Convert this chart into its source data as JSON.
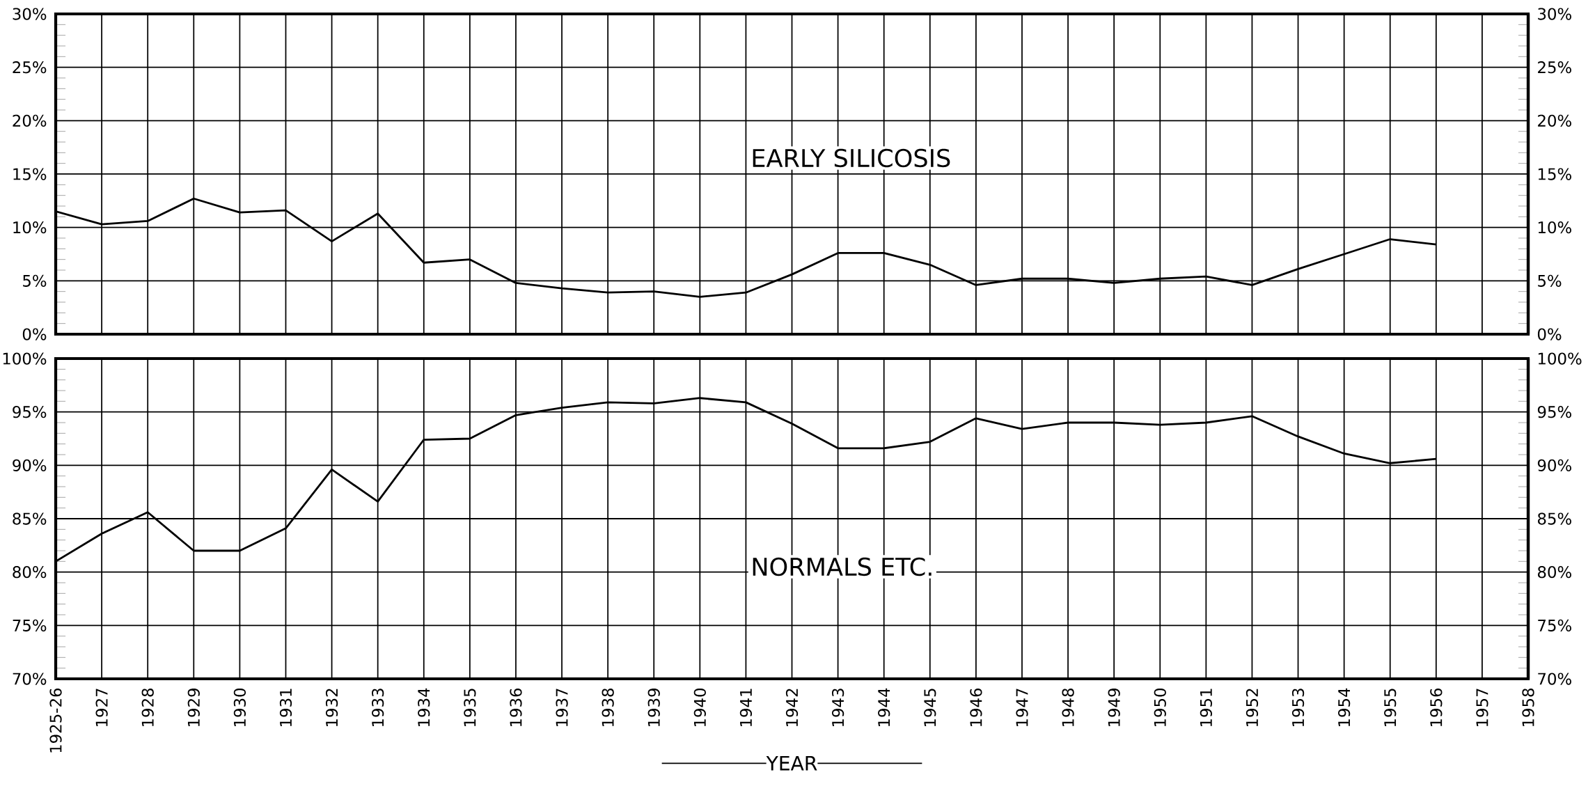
{
  "chart_data": [
    {
      "type": "line",
      "categories": [
        "1925-26",
        "1927",
        "1928",
        "1929",
        "1930",
        "1931",
        "1932",
        "1933",
        "1934",
        "1935",
        "1936",
        "1937",
        "1938",
        "1939",
        "1940",
        "1941",
        "1942",
        "1943",
        "1944",
        "1945",
        "1946",
        "1947",
        "1948",
        "1949",
        "1950",
        "1951",
        "1952",
        "1953",
        "1954",
        "1955",
        "1956",
        "1957",
        "1958"
      ],
      "series": [
        {
          "color": "#000000",
          "values": [
            11.5,
            10.3,
            10.6,
            12.7,
            11.4,
            11.6,
            8.7,
            11.3,
            6.7,
            7.0,
            4.8,
            4.3,
            3.9,
            4.0,
            3.5,
            3.9,
            5.6,
            7.6,
            7.6,
            6.5,
            4.6,
            5.2,
            5.2,
            4.8,
            5.2,
            5.4,
            4.6,
            6.1,
            7.5,
            8.9,
            8.4,
            null,
            null
          ]
        }
      ],
      "ylim": [
        0,
        30
      ],
      "yticks": [
        {
          "value": 0,
          "label": "0%"
        },
        {
          "value": 5,
          "label": "5%"
        },
        {
          "value": 10,
          "label": "10%"
        },
        {
          "value": 15,
          "label": "15%"
        },
        {
          "value": 20,
          "label": "20%"
        },
        {
          "value": 25,
          "label": "25%"
        },
        {
          "value": 30,
          "label": "30%"
        }
      ],
      "y2lim": [
        0,
        30
      ],
      "y2ticks": [
        {
          "value": 0,
          "label": "0%"
        },
        {
          "value": 5,
          "label": "5%"
        },
        {
          "value": 10,
          "label": "10%"
        },
        {
          "value": 15,
          "label": "15%"
        },
        {
          "value": 20,
          "label": "20%"
        },
        {
          "value": 25,
          "label": "25%"
        },
        {
          "value": 30,
          "label": "30%"
        }
      ],
      "annotations": [
        "EARLY SILICOSIS"
      ],
      "grid": true,
      "tick_labels": "y",
      "line_style": "solid"
    },
    {
      "type": "line",
      "categories": [
        "1925-26",
        "1927",
        "1928",
        "1929",
        "1930",
        "1931",
        "1932",
        "1933",
        "1934",
        "1935",
        "1936",
        "1937",
        "1938",
        "1939",
        "1940",
        "1941",
        "1942",
        "1943",
        "1944",
        "1945",
        "1946",
        "1947",
        "1948",
        "1949",
        "1950",
        "1951",
        "1952",
        "1953",
        "1954",
        "1955",
        "1956",
        "1957",
        "1958"
      ],
      "series": [
        {
          "color": "#000000",
          "values": [
            81.0,
            83.6,
            85.6,
            82.0,
            82.0,
            84.1,
            89.6,
            86.6,
            92.4,
            92.5,
            94.7,
            95.4,
            95.9,
            95.8,
            96.3,
            95.9,
            93.9,
            91.6,
            91.6,
            92.2,
            94.4,
            93.4,
            94.0,
            94.0,
            93.8,
            94.0,
            94.6,
            92.7,
            91.1,
            90.2,
            90.6,
            null,
            null
          ]
        }
      ],
      "ylim": [
        70,
        100
      ],
      "yticks": [
        {
          "value": 70,
          "label": "70%"
        },
        {
          "value": 75,
          "label": "75%"
        },
        {
          "value": 80,
          "label": "80%"
        },
        {
          "value": 85,
          "label": "85%"
        },
        {
          "value": 90,
          "label": "90%"
        },
        {
          "value": 95,
          "label": "95%"
        },
        {
          "value": 100,
          "label": "100%"
        }
      ],
      "y2lim": [
        70,
        100
      ],
      "y2ticks": [
        {
          "value": 70,
          "label": "70%"
        },
        {
          "value": 75,
          "label": "75%"
        },
        {
          "value": 80,
          "label": "80%"
        },
        {
          "value": 85,
          "label": "85%"
        },
        {
          "value": 90,
          "label": "90%"
        },
        {
          "value": 95,
          "label": "95%"
        },
        {
          "value": 100,
          "label": "100%"
        }
      ],
      "annotations": [
        "NORMALS ETC."
      ],
      "xlabel": "YEAR",
      "grid": true,
      "line_style": "solid"
    }
  ]
}
